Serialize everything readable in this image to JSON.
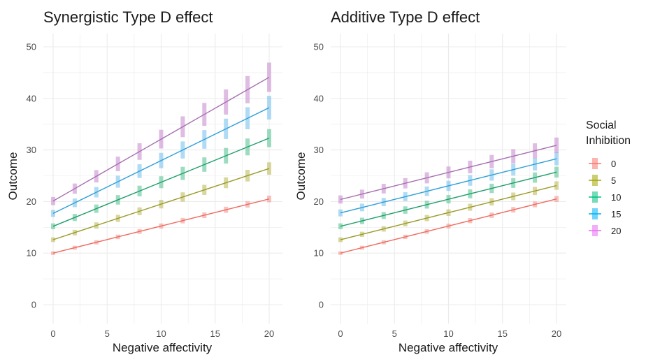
{
  "chart_data": [
    {
      "type": "line",
      "title": "Synergistic Type D effect",
      "xlabel": "Negative affectivity",
      "ylabel": "Outcome",
      "xlim": [
        0,
        20
      ],
      "ylim": [
        -3,
        52
      ],
      "x_ticks": [
        0,
        5,
        10,
        15,
        20
      ],
      "y_ticks": [
        0,
        10,
        20,
        30,
        40,
        50
      ],
      "x_points": [
        0,
        2,
        4,
        6,
        8,
        10,
        12,
        14,
        16,
        18,
        20
      ],
      "grid": true,
      "series": [
        {
          "name": "0",
          "values": [
            10,
            11.05,
            12.1,
            13.15,
            14.2,
            15.25,
            16.3,
            17.35,
            18.4,
            19.45,
            20.5
          ]
        },
        {
          "name": "5",
          "values": [
            12.6,
            13.98,
            15.36,
            16.74,
            18.12,
            19.5,
            20.88,
            22.26,
            23.64,
            25.02,
            26.4
          ]
        },
        {
          "name": "10",
          "values": [
            15.2,
            16.91,
            18.62,
            20.33,
            22.04,
            23.75,
            25.46,
            27.17,
            28.88,
            30.59,
            32.3
          ]
        },
        {
          "name": "15",
          "values": [
            17.7,
            19.75,
            21.8,
            23.85,
            25.9,
            27.95,
            30.0,
            32.05,
            34.1,
            36.15,
            38.2
          ]
        },
        {
          "name": "20",
          "values": [
            20.1,
            22.5,
            24.9,
            27.3,
            29.7,
            32.1,
            34.5,
            36.9,
            39.3,
            41.7,
            44.1
          ]
        }
      ]
    },
    {
      "type": "line",
      "title": "Additive Type D effect",
      "xlabel": "Negative affectivity",
      "ylabel": "Outcome",
      "xlim": [
        0,
        20
      ],
      "ylim": [
        -3,
        52
      ],
      "x_ticks": [
        0,
        5,
        10,
        15,
        20
      ],
      "y_ticks": [
        0,
        10,
        20,
        30,
        40,
        50
      ],
      "x_points": [
        0,
        2,
        4,
        6,
        8,
        10,
        12,
        14,
        16,
        18,
        20
      ],
      "grid": true,
      "series": [
        {
          "name": "0",
          "values": [
            10,
            11.05,
            12.1,
            13.15,
            14.2,
            15.25,
            16.3,
            17.35,
            18.4,
            19.45,
            20.5
          ]
        },
        {
          "name": "5",
          "values": [
            12.6,
            13.65,
            14.7,
            15.75,
            16.8,
            17.85,
            18.9,
            19.95,
            21.0,
            22.05,
            23.1
          ]
        },
        {
          "name": "10",
          "values": [
            15.2,
            16.25,
            17.3,
            18.35,
            19.4,
            20.45,
            21.5,
            22.55,
            23.6,
            24.65,
            25.7
          ]
        },
        {
          "name": "15",
          "values": [
            17.8,
            18.85,
            19.9,
            20.95,
            22.0,
            23.05,
            24.1,
            25.15,
            26.2,
            27.25,
            28.3
          ]
        },
        {
          "name": "20",
          "values": [
            20.4,
            21.45,
            22.5,
            23.55,
            24.6,
            25.65,
            26.7,
            27.75,
            28.8,
            29.85,
            30.9
          ]
        }
      ]
    }
  ],
  "legend": {
    "title_line1": "Social",
    "title_line2": "Inhibition",
    "placement": "right",
    "items": [
      {
        "label": "0",
        "color": "#F8766D"
      },
      {
        "label": "5",
        "color": "#A3A500"
      },
      {
        "label": "10",
        "color": "#00BF7D"
      },
      {
        "label": "15",
        "color": "#00B0F6"
      },
      {
        "label": "20",
        "color": "#E76BF3"
      }
    ]
  },
  "colors": {
    "series": [
      "#F8766D",
      "#A3A500",
      "#00BF7D",
      "#00B0F6",
      "#E76BF3"
    ],
    "lines": [
      "#EE6A5E",
      "#9A9A2A",
      "#1E9E6A",
      "#2E9FD8",
      "#A670B0"
    ],
    "bands": [
      "#F29A92",
      "#BDBD5E",
      "#5CC497",
      "#7CC3EE",
      "#C98FD0"
    ],
    "grid": "#EBEBEB"
  }
}
